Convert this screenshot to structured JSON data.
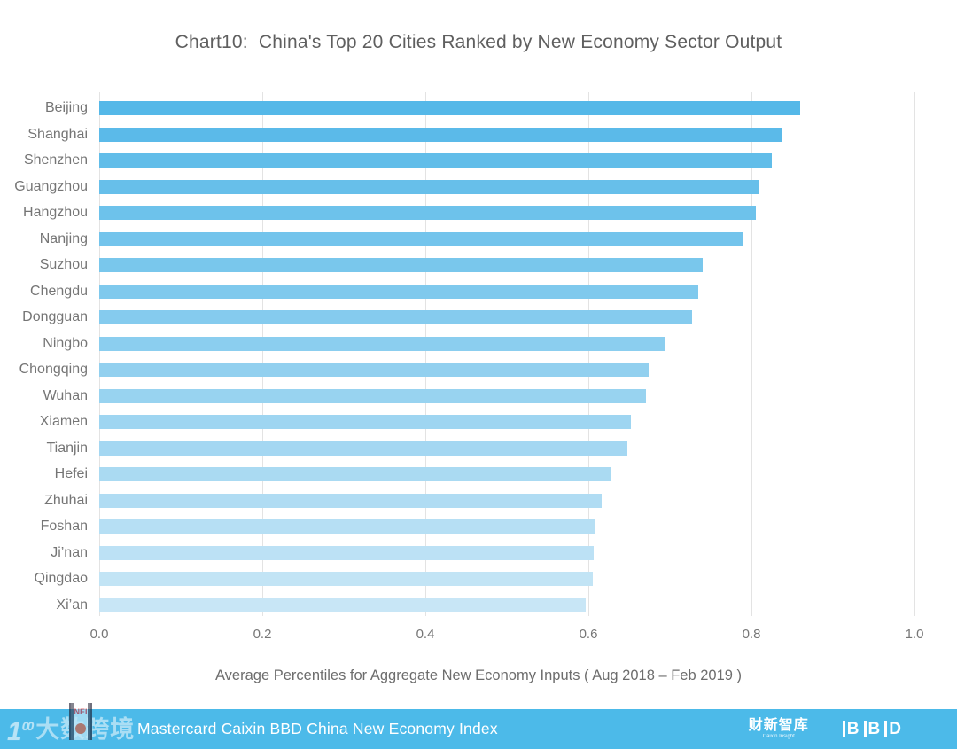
{
  "title": "Chart10:  China's Top 20 Cities Ranked by New Economy Sector Output",
  "chart_data": {
    "type": "bar",
    "orientation": "horizontal",
    "title": "Chart10:  China's Top 20 Cities Ranked by New Economy Sector Output",
    "categories": [
      "Beijing",
      "Shanghai",
      "Shenzhen",
      "Guangzhou",
      "Hangzhou",
      "Nanjing",
      "Suzhou",
      "Chengdu",
      "Dongguan",
      "Ningbo",
      "Chongqing",
      "Wuhan",
      "Xiamen",
      "Tianjin",
      "Hefei",
      "Zhuhai",
      "Foshan",
      "Ji’nan",
      "Qingdao",
      "Xi’an"
    ],
    "values": [
      0.86,
      0.837,
      0.825,
      0.81,
      0.805,
      0.79,
      0.74,
      0.735,
      0.727,
      0.693,
      0.674,
      0.671,
      0.652,
      0.648,
      0.628,
      0.616,
      0.608,
      0.607,
      0.605,
      0.597
    ],
    "xlabel": "Average Percentiles for Aggregate New Economy Inputs ( Aug 2018 – Feb 2019 )",
    "ylabel": "",
    "xlim": [
      0.0,
      1.0
    ],
    "xticks": [
      0.0,
      0.2,
      0.4,
      0.6,
      0.8,
      1.0
    ],
    "xtick_labels": [
      "0.0",
      "0.2",
      "0.4",
      "0.6",
      "0.8",
      "1.0"
    ],
    "grid": "vertical",
    "legend": "none",
    "bar_color_top": "#55b8e8",
    "bar_color_bottom": "#c8e6f6",
    "gridline_color": "#e3e3e3"
  },
  "footer": {
    "bar_color": "#4cbae9",
    "title": "Mastercard Caixin BBD China New Economy Index",
    "watermark_100": "1",
    "watermark_100_sup": "00",
    "watermark_text": "大数跨境",
    "nei_label": "NEI",
    "caixin_logo": "财新智库",
    "caixin_sub": "Caixin Insight",
    "bbd_logo": "BBD"
  }
}
